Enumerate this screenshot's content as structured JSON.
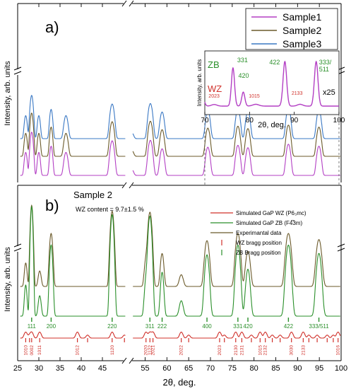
{
  "colors": {
    "sample1": "#b33fc4",
    "sample2": "#6b5a2a",
    "sample3": "#3a78c4",
    "wz": "#d0302a",
    "zb": "#2a8f2a",
    "inset_zb_label": "#2a8f2a",
    "inset_wz_label": "#d0302a"
  },
  "chart_data": [
    {
      "panel": "a)",
      "type": "line",
      "ylabel": "Intensity, arb. units",
      "y_scale": "log",
      "y_axis_broken": true,
      "x_axis_broken_between": [
        50,
        52
      ],
      "xlim": [
        25,
        100
      ],
      "grid": false,
      "legend_position": "top-right",
      "series": [
        {
          "name": "Sample1",
          "color_key": "sample1",
          "offset_decades": 0,
          "x": [
            26.9,
            28.3,
            30.0,
            32.9,
            36.4,
            47.3,
            51.9,
            56.2,
            58.9,
            69.4,
            76.3,
            78.6,
            87.9,
            94.9
          ],
          "y": [
            1.0,
            9.0,
            1.0,
            2.0,
            1.0,
            3.6,
            0.1,
            3.8,
            1.5,
            1.8,
            2.2,
            1.7,
            2.5,
            2.0
          ]
        },
        {
          "name": "Sample2",
          "color_key": "sample2",
          "offset_decades": 1,
          "x": [
            26.9,
            28.3,
            30.0,
            32.9,
            36.4,
            47.3,
            51.9,
            56.2,
            58.9,
            69.4,
            76.3,
            78.6,
            87.9,
            94.9
          ],
          "y": [
            1.0,
            9.0,
            1.0,
            2.0,
            1.0,
            3.6,
            0.1,
            3.8,
            1.5,
            1.8,
            2.2,
            1.7,
            2.5,
            2.0
          ]
        },
        {
          "name": "Sample3",
          "color_key": "sample3",
          "offset_decades": 2,
          "x": [
            26.9,
            28.3,
            30.0,
            32.9,
            36.4,
            47.3,
            51.9,
            56.2,
            58.9,
            69.4,
            76.3,
            78.6,
            87.9,
            94.9
          ],
          "y": [
            1.0,
            9.0,
            1.0,
            2.0,
            1.0,
            3.6,
            0.1,
            3.8,
            1.5,
            1.8,
            2.2,
            1.7,
            2.5,
            2.0
          ]
        }
      ],
      "legend": [
        "Sample1",
        "Sample2",
        "Sample3"
      ],
      "inset": {
        "xlabel": "2θ, deg.",
        "ylabel": "Intensity, arb. units",
        "xlim": [
          70,
          100
        ],
        "xticks": [
          "70",
          "80",
          "90",
          "100"
        ],
        "zb_label": "ZB",
        "wz_label": "WZ",
        "magnification": "x25",
        "annotations": [
          {
            "text": "331",
            "x": 76.3,
            "family": "zb"
          },
          {
            "text": "420",
            "x": 78.6,
            "family": "zb"
          },
          {
            "text": "422",
            "x": 87.9,
            "family": "zb"
          },
          {
            "text": "333/",
            "x": 94.9,
            "family": "zb"
          },
          {
            "text": "511",
            "x": 94.9,
            "family": "zb"
          },
          {
            "text": "2023",
            "x": 72.1,
            "family": "wz"
          },
          {
            "text": "1015",
            "x": 81.4,
            "family": "wz"
          },
          {
            "text": "2133",
            "x": 91.3,
            "family": "wz"
          }
        ]
      }
    },
    {
      "panel": "b)",
      "type": "line",
      "title": "Sample 2",
      "subtitle": "WZ content = 9.7±1.5 %",
      "ylabel": "Intensity, arb. units",
      "xlabel": "2θ, deg.",
      "y_axis_broken": true,
      "x_axis_broken_between": [
        50,
        52
      ],
      "xlim": [
        25,
        100
      ],
      "grid": false,
      "legend_position": "top-right",
      "xticks": [
        "25",
        "30",
        "35",
        "40",
        "45",
        "55",
        "60",
        "65",
        "70",
        "75",
        "80",
        "85",
        "90",
        "95",
        "100"
      ],
      "legend": [
        {
          "label": "Simulated GaP WZ (P6₃mc)",
          "kind": "line",
          "color_key": "wz"
        },
        {
          "label": "Simulated GaP ZB (F4̅3m)",
          "kind": "line",
          "color_key": "zb"
        },
        {
          "label": "Experimantal data",
          "kind": "line",
          "color_key": "sample2"
        },
        {
          "label": "WZ bragg position",
          "kind": "tick",
          "color_key": "wz"
        },
        {
          "label": "ZB Bragg position",
          "kind": "tick",
          "color_key": "zb"
        }
      ],
      "zb_peaks": [
        {
          "label": "111",
          "x": 28.3
        },
        {
          "label": "200",
          "x": 32.9
        },
        {
          "label": "220",
          "x": 47.3
        },
        {
          "label": "311",
          "x": 56.1
        },
        {
          "label": "222",
          "x": 58.9
        },
        {
          "label": "400",
          "x": 69.2
        },
        {
          "label": "331",
          "x": 76.3
        },
        {
          "label": "420",
          "x": 78.6
        },
        {
          "label": "422",
          "x": 87.9
        },
        {
          "label": "333/511",
          "x": 94.9
        }
      ],
      "wz_peaks": [
        {
          "label": "1010",
          "x": 26.9
        },
        {
          "label": "0002",
          "x": 28.3
        },
        {
          "label": "1011",
          "x": 30.2
        },
        {
          "label": "1012",
          "x": 39.1
        },
        {
          "label": "1120",
          "x": 47.3
        },
        {
          "label": "2020",
          "x": 55.2
        },
        {
          "label": "1122",
          "x": 56.1
        },
        {
          "label": "2021",
          "x": 56.8
        },
        {
          "label": "2022",
          "x": 63.3
        },
        {
          "label": "2023",
          "x": 72.1
        },
        {
          "label": "2130",
          "x": 75.8
        },
        {
          "label": "2131",
          "x": 77.2
        },
        {
          "label": "1015",
          "x": 81.4
        },
        {
          "label": "2132",
          "x": 82.6
        },
        {
          "label": "3030",
          "x": 88.6
        },
        {
          "label": "2133",
          "x": 91.3
        },
        {
          "label": "1016",
          "x": 99.3
        }
      ],
      "wz_extra_ticks_x": [
        27.8,
        41.5,
        50.2,
        65.0,
        73.2,
        79.4,
        84.2,
        86.0,
        92.6,
        94.5,
        96.8,
        98.2
      ]
    }
  ]
}
